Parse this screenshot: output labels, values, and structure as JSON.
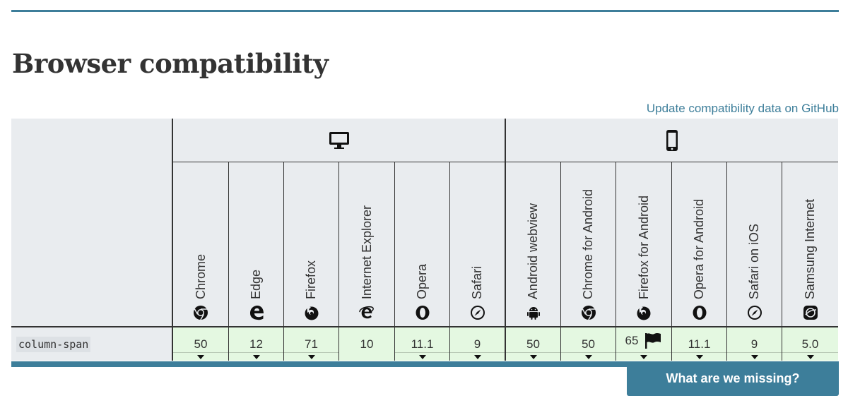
{
  "page": {
    "title": "Browser compatibility"
  },
  "github_link": "Update compatibility data on GitHub",
  "platforms": {
    "desktop": "desktop-icon",
    "mobile": "mobile-icon"
  },
  "browsers": [
    {
      "name": "Chrome",
      "icon": "chrome-icon"
    },
    {
      "name": "Edge",
      "icon": "edge-icon"
    },
    {
      "name": "Firefox",
      "icon": "firefox-icon"
    },
    {
      "name": "Internet Explorer",
      "icon": "ie-icon"
    },
    {
      "name": "Opera",
      "icon": "opera-icon"
    },
    {
      "name": "Safari",
      "icon": "safari-icon"
    },
    {
      "name": "Android webview",
      "icon": "android-icon"
    },
    {
      "name": "Chrome for Android",
      "icon": "chrome-icon"
    },
    {
      "name": "Firefox for Android",
      "icon": "firefox-icon"
    },
    {
      "name": "Opera for Android",
      "icon": "opera-icon"
    },
    {
      "name": "Safari on iOS",
      "icon": "safari-icon"
    },
    {
      "name": "Samsung Internet",
      "icon": "samsung-icon"
    }
  ],
  "feature": {
    "name": "column-span",
    "support": [
      "50",
      "12",
      "71",
      "10",
      "11.1",
      "9",
      "50",
      "50",
      "65",
      "11.1",
      "9",
      "5.0"
    ]
  },
  "missing_button": "What are we missing?",
  "colors": {
    "accent": "#3d7e9a",
    "supported": "#e4f8e1",
    "header_bg": "#e9ecef"
  }
}
